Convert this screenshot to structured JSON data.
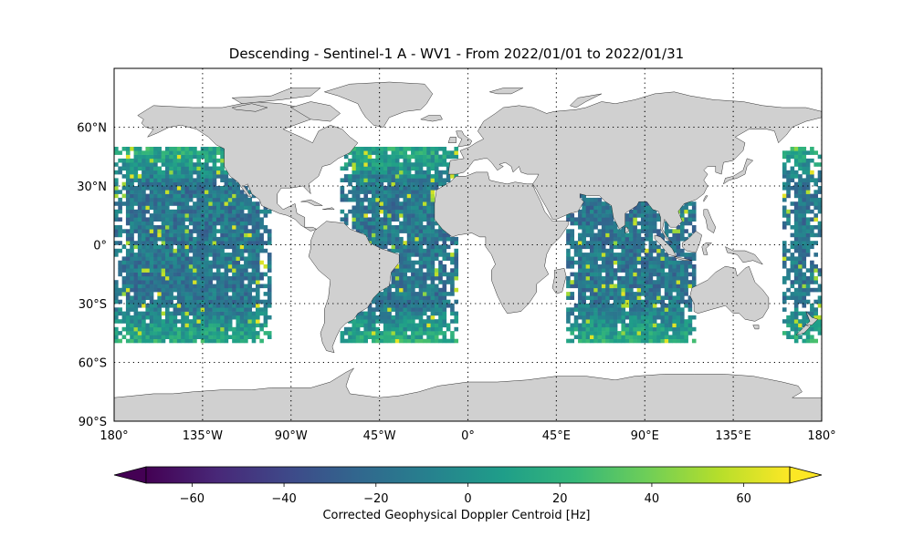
{
  "map": {
    "title": "Descending - Sentinel-1 A - WV1 - From 2022/01/01 to 2022/01/31",
    "projection": "plate-carree",
    "extent": {
      "lon": [
        -180,
        180
      ],
      "lat": [
        -90,
        90
      ]
    },
    "gridlines": {
      "style": "dotted",
      "lon": [
        -135,
        -90,
        -45,
        0,
        45,
        90,
        135,
        180
      ],
      "lat": [
        60,
        30,
        0,
        -30,
        -60
      ]
    },
    "lat_labels": [
      {
        "value": 60,
        "label": "60°N"
      },
      {
        "value": 30,
        "label": "30°N"
      },
      {
        "value": 0,
        "label": "0°"
      },
      {
        "value": -30,
        "label": "30°S"
      },
      {
        "value": -60,
        "label": "60°S"
      },
      {
        "value": -90,
        "label": "90°S"
      }
    ],
    "lon_labels": [
      {
        "value": -180,
        "label": "180°"
      },
      {
        "value": -135,
        "label": "135°W"
      },
      {
        "value": -90,
        "label": "90°W"
      },
      {
        "value": -45,
        "label": "45°W"
      },
      {
        "value": 0,
        "label": "0°"
      },
      {
        "value": 45,
        "label": "45°E"
      },
      {
        "value": 90,
        "label": "90°E"
      },
      {
        "value": 135,
        "label": "135°E"
      },
      {
        "value": 180,
        "label": "180°"
      }
    ],
    "colors": {
      "land": "#d0d0d0",
      "coast": "#000000",
      "ocean": "#ffffff"
    },
    "data_coverage": {
      "lat_range": [
        -50,
        50
      ],
      "cell_deg": 2
    },
    "swaths": [
      {
        "region": "Pacific East",
        "lon": [
          -180,
          -100
        ]
      },
      {
        "region": "Atlantic",
        "lon": [
          -65,
          -5
        ]
      },
      {
        "region": "Indian Ocean",
        "lon": [
          50,
          115
        ]
      },
      {
        "region": "Pacific West",
        "lon": [
          160,
          180
        ]
      }
    ]
  },
  "colorbar": {
    "label": "Corrected Geophysical Doppler Centroid [Hz]",
    "colormap": "viridis",
    "range": [
      -70,
      70
    ],
    "extend": "both",
    "ticks": [
      {
        "value": -60,
        "label": "−60"
      },
      {
        "value": -40,
        "label": "−40"
      },
      {
        "value": -20,
        "label": "−20"
      },
      {
        "value": 0,
        "label": "0"
      },
      {
        "value": 20,
        "label": "20"
      },
      {
        "value": 40,
        "label": "40"
      },
      {
        "value": 60,
        "label": "60"
      }
    ],
    "stops": [
      "#440154",
      "#482878",
      "#3e4989",
      "#31688e",
      "#26828e",
      "#1f9e89",
      "#35b779",
      "#6ece58",
      "#b5de2b",
      "#fde725"
    ]
  }
}
